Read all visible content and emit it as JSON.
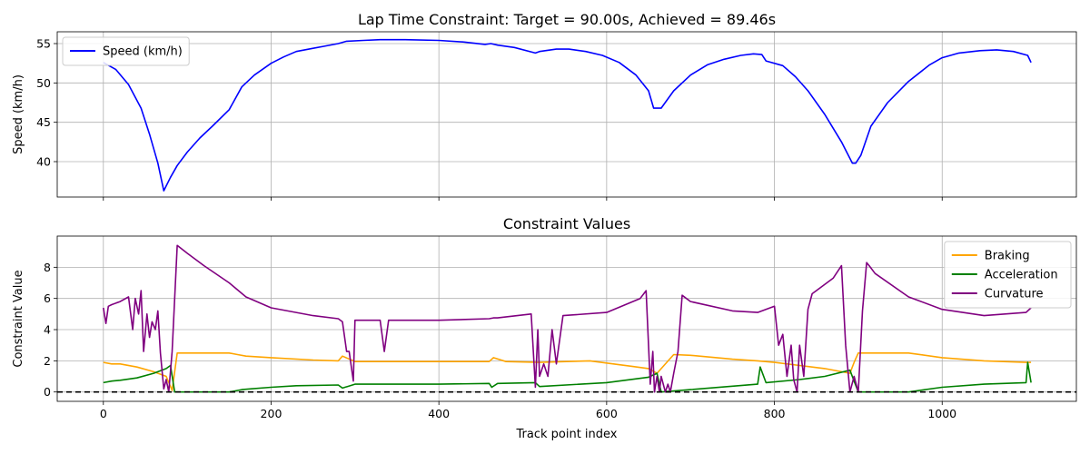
{
  "chart_data": [
    {
      "type": "line",
      "title": "Lap Time Constraint: Target = 90.00s, Achieved = 89.46s",
      "xlabel": "",
      "ylabel": "Speed (km/h)",
      "xlim": [
        -55,
        1160
      ],
      "ylim": [
        35.5,
        56.5
      ],
      "xticks": [
        0,
        200,
        400,
        600,
        800,
        1000
      ],
      "yticks": [
        40,
        45,
        50,
        55
      ],
      "grid": true,
      "legend": "upper left",
      "series": [
        {
          "name": "Speed (km/h)",
          "color": "#0000ff",
          "x": [
            0,
            15,
            30,
            45,
            55,
            65,
            72,
            80,
            88,
            100,
            115,
            130,
            150,
            165,
            180,
            200,
            215,
            230,
            250,
            265,
            280,
            290,
            310,
            330,
            340,
            360,
            400,
            430,
            455,
            462,
            470,
            490,
            515,
            520,
            540,
            555,
            575,
            595,
            615,
            635,
            650,
            656,
            665,
            680,
            700,
            720,
            740,
            760,
            775,
            785,
            790,
            810,
            825,
            840,
            860,
            880,
            893,
            897,
            903,
            915,
            935,
            960,
            985,
            1000,
            1020,
            1045,
            1065,
            1085,
            1102,
            1106
          ],
          "y": [
            52.6,
            51.7,
            49.8,
            46.8,
            43.5,
            39.8,
            36.3,
            38.0,
            39.5,
            41.2,
            43.0,
            44.5,
            46.6,
            49.5,
            51.0,
            52.5,
            53.3,
            54.0,
            54.4,
            54.7,
            55.0,
            55.3,
            55.4,
            55.5,
            55.5,
            55.5,
            55.4,
            55.2,
            54.9,
            55.0,
            54.8,
            54.5,
            53.8,
            54.0,
            54.3,
            54.3,
            54.0,
            53.5,
            52.6,
            51.0,
            49.0,
            46.8,
            46.8,
            49.0,
            51.0,
            52.3,
            53.0,
            53.5,
            53.7,
            53.6,
            52.8,
            52.2,
            50.8,
            49.0,
            46.0,
            42.5,
            39.8,
            39.8,
            40.8,
            44.5,
            47.5,
            50.2,
            52.3,
            53.2,
            53.8,
            54.1,
            54.2,
            54.0,
            53.5,
            52.6
          ]
        }
      ]
    },
    {
      "type": "line",
      "title": "Constraint Values",
      "xlabel": "Track point index",
      "ylabel": "Constraint Value",
      "xlim": [
        -55,
        1160
      ],
      "ylim": [
        -0.6,
        10.0
      ],
      "xticks": [
        0,
        200,
        400,
        600,
        800,
        1000
      ],
      "yticks": [
        0,
        2,
        4,
        6,
        8
      ],
      "grid": true,
      "legend": "upper right",
      "hline": {
        "y": 0,
        "style": "dashed",
        "color": "#000000"
      },
      "series": [
        {
          "name": "Braking",
          "color": "#ffa500",
          "x": [
            0,
            10,
            20,
            40,
            60,
            75,
            82,
            88,
            100,
            150,
            160,
            170,
            200,
            250,
            280,
            285,
            300,
            400,
            460,
            465,
            480,
            520,
            580,
            630,
            650,
            660,
            680,
            700,
            750,
            780,
            800,
            830,
            860,
            890,
            895,
            900,
            960,
            1000,
            1050,
            1100,
            1106
          ],
          "y": [
            1.9,
            1.8,
            1.8,
            1.6,
            1.3,
            1.0,
            0.1,
            2.5,
            2.5,
            2.5,
            2.4,
            2.3,
            2.2,
            2.05,
            2.0,
            2.3,
            1.95,
            1.95,
            1.95,
            2.2,
            1.95,
            1.9,
            2.0,
            1.65,
            1.5,
            1.2,
            2.4,
            2.35,
            2.1,
            2.0,
            1.9,
            1.7,
            1.5,
            1.2,
            1.9,
            2.5,
            2.5,
            2.2,
            2.0,
            1.9,
            1.9
          ]
        },
        {
          "name": "Acceleration",
          "color": "#008000",
          "x": [
            0,
            10,
            20,
            40,
            60,
            75,
            80,
            85,
            150,
            165,
            175,
            200,
            230,
            280,
            285,
            300,
            400,
            460,
            463,
            470,
            515,
            520,
            600,
            650,
            660,
            665,
            700,
            780,
            783,
            790,
            830,
            860,
            890,
            900,
            960,
            1000,
            1050,
            1100,
            1102,
            1106
          ],
          "y": [
            0.6,
            0.7,
            0.75,
            0.9,
            1.2,
            1.5,
            1.7,
            0.0,
            0.0,
            0.15,
            0.2,
            0.3,
            0.4,
            0.45,
            0.25,
            0.5,
            0.5,
            0.55,
            0.3,
            0.55,
            0.6,
            0.35,
            0.6,
            0.95,
            1.2,
            0.0,
            0.15,
            0.5,
            1.6,
            0.6,
            0.8,
            1.0,
            1.4,
            0.0,
            0.0,
            0.3,
            0.5,
            0.6,
            1.9,
            0.6
          ]
        },
        {
          "name": "Curvature",
          "color": "#800080",
          "x": [
            0,
            3,
            6,
            10,
            20,
            30,
            35,
            38,
            42,
            45,
            48,
            52,
            55,
            58,
            62,
            65,
            68,
            72,
            75,
            78,
            82,
            88,
            100,
            120,
            150,
            170,
            200,
            250,
            280,
            285,
            290,
            293,
            298,
            300,
            330,
            335,
            340,
            400,
            460,
            465,
            470,
            510,
            515,
            518,
            520,
            525,
            530,
            535,
            540,
            548,
            600,
            640,
            647,
            652,
            655,
            657,
            660,
            663,
            665,
            670,
            673,
            676,
            680,
            685,
            690,
            700,
            750,
            780,
            800,
            805,
            810,
            815,
            820,
            823,
            827,
            830,
            835,
            840,
            845,
            850,
            870,
            880,
            885,
            890,
            895,
            900,
            905,
            910,
            913,
            920,
            960,
            1000,
            1050,
            1100,
            1106
          ],
          "y": [
            5.4,
            4.4,
            5.5,
            5.6,
            5.8,
            6.1,
            4.0,
            6.0,
            5.0,
            6.5,
            2.6,
            5.0,
            3.5,
            4.5,
            4.0,
            5.2,
            2.5,
            0.2,
            0.8,
            0.0,
            2.6,
            9.4,
            8.9,
            8.1,
            7.0,
            6.1,
            5.4,
            4.9,
            4.7,
            4.5,
            2.6,
            2.6,
            0.7,
            4.6,
            4.6,
            2.6,
            4.6,
            4.6,
            4.7,
            4.75,
            4.75,
            5.0,
            0.3,
            4.0,
            1.0,
            1.8,
            1.0,
            4.0,
            1.8,
            4.9,
            5.1,
            6.0,
            6.5,
            0.5,
            2.6,
            0.0,
            1.0,
            0.0,
            1.0,
            0.0,
            0.5,
            0.0,
            1.2,
            2.6,
            6.2,
            5.8,
            5.2,
            5.1,
            5.5,
            3.0,
            3.7,
            1.0,
            3.0,
            0.8,
            0.0,
            3.0,
            1.0,
            5.3,
            6.3,
            6.5,
            7.3,
            8.1,
            3.0,
            0.0,
            1.0,
            0.0,
            5.2,
            8.3,
            8.1,
            7.6,
            6.1,
            5.3,
            4.9,
            5.1,
            5.4
          ]
        }
      ]
    }
  ]
}
